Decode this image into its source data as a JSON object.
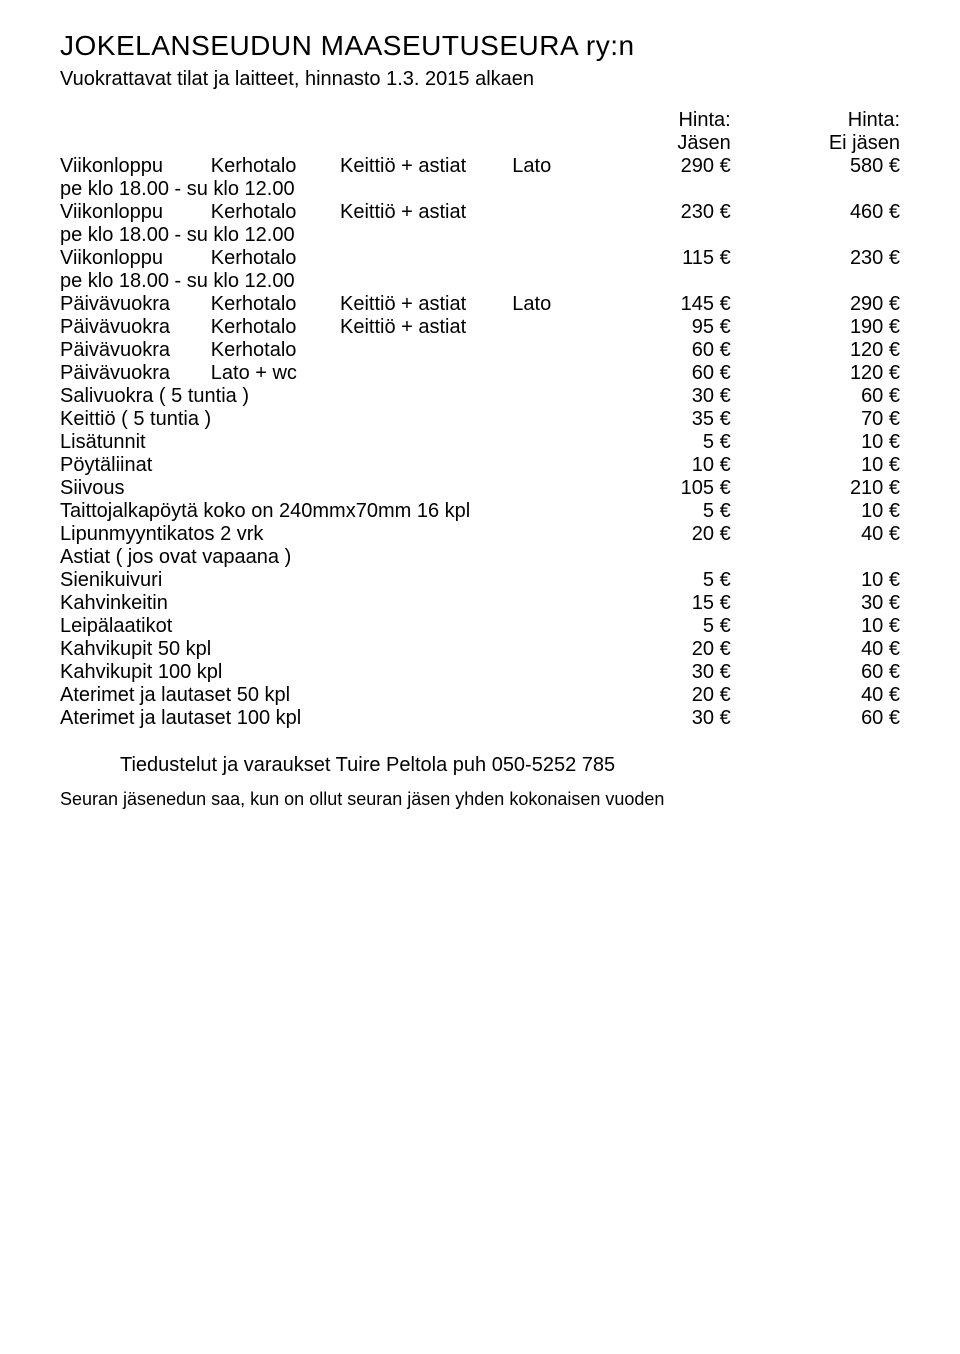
{
  "title": "JOKELANSEUDUN MAASEUTUSEURA ry:n",
  "subtitle": "Vuokrattavat tilat ja laitteet, hinnasto 1.3. 2015 alkaen",
  "headers": {
    "price_label": "Hinta:",
    "member": "Jäsen",
    "nonmember": "Ei jäsen"
  },
  "rows": [
    {
      "type": "two",
      "c0": "Viikonloppu",
      "c1": "Kerhotalo",
      "c2": "Keittiö + astiat",
      "c3": "Lato",
      "m": "290 €",
      "n": "580 €",
      "sub": "pe klo 18.00 - su klo 12.00"
    },
    {
      "type": "two",
      "c0": "Viikonloppu",
      "c1": "Kerhotalo",
      "c2": "Keittiö + astiat",
      "c3": "",
      "m": "230 €",
      "n": "460 €",
      "sub": "pe klo 18.00 - su klo 12.00"
    },
    {
      "type": "two",
      "c0": "Viikonloppu",
      "c1": "Kerhotalo",
      "c2": "",
      "c3": "",
      "m": "115 €",
      "n": "230 €",
      "sub": "pe klo 18.00 - su klo 12.00"
    },
    {
      "type": "one",
      "c0": "Päivävuokra",
      "c1": "Kerhotalo",
      "c2": "Keittiö + astiat",
      "c3": "Lato",
      "m": "145 €",
      "n": "290 €"
    },
    {
      "type": "one",
      "c0": "Päivävuokra",
      "c1": "Kerhotalo",
      "c2": "Keittiö + astiat",
      "c3": "",
      "m": "95 €",
      "n": "190 €"
    },
    {
      "type": "one",
      "c0": "Päivävuokra",
      "c1": "Kerhotalo",
      "c2": "",
      "c3": "",
      "m": "60 €",
      "n": "120 €"
    },
    {
      "type": "one",
      "c0": "Päivävuokra",
      "c1": "Lato + wc",
      "c2": "",
      "c3": "",
      "m": "60 €",
      "n": "120 €"
    },
    {
      "type": "span",
      "label": "Salivuokra ( 5 tuntia )",
      "m": "30 €",
      "n": "60 €"
    },
    {
      "type": "span",
      "label": "Keittiö ( 5 tuntia )",
      "m": "35 €",
      "n": "70 €"
    },
    {
      "type": "span",
      "label": "Lisätunnit",
      "m": "5 €",
      "n": "10 €"
    },
    {
      "type": "span",
      "label": "Pöytäliinat",
      "m": "10 €",
      "n": "10 €"
    },
    {
      "type": "span",
      "label": "Siivous",
      "m": "105 €",
      "n": "210 €"
    },
    {
      "type": "span",
      "label": "Taittojalkapöytä koko on 240mmx70mm 16 kpl",
      "m": "5 €",
      "n": "10 €"
    },
    {
      "type": "span",
      "label": "Lipunmyyntikatos 2 vrk",
      "m": "20 €",
      "n": "40 €"
    }
  ],
  "astia_header": "Astiat ( jos ovat vapaana )",
  "astia_rows": [
    {
      "label": "Sienikuivuri",
      "m": "5 €",
      "n": "10 €"
    },
    {
      "label": "Kahvinkeitin",
      "m": "15 €",
      "n": "30 €"
    },
    {
      "label": "Leipälaatikot",
      "m": "5 €",
      "n": "10 €"
    },
    {
      "label": "Kahvikupit 50 kpl",
      "m": "20 €",
      "n": "40 €"
    },
    {
      "label": "Kahvikupit 100 kpl",
      "m": "30 €",
      "n": "60 €"
    },
    {
      "label": "Aterimet ja lautaset 50 kpl",
      "m": "20 €",
      "n": "40 €"
    },
    {
      "label": "Aterimet ja lautaset 100 kpl",
      "m": "30 €",
      "n": "60 €"
    }
  ],
  "contact": "Tiedustelut ja varaukset Tuire Peltola puh 050-5252 785",
  "footnote": "Seuran jäsenedun saa, kun on ollut seuran jäsen yhden kokonaisen vuoden"
}
